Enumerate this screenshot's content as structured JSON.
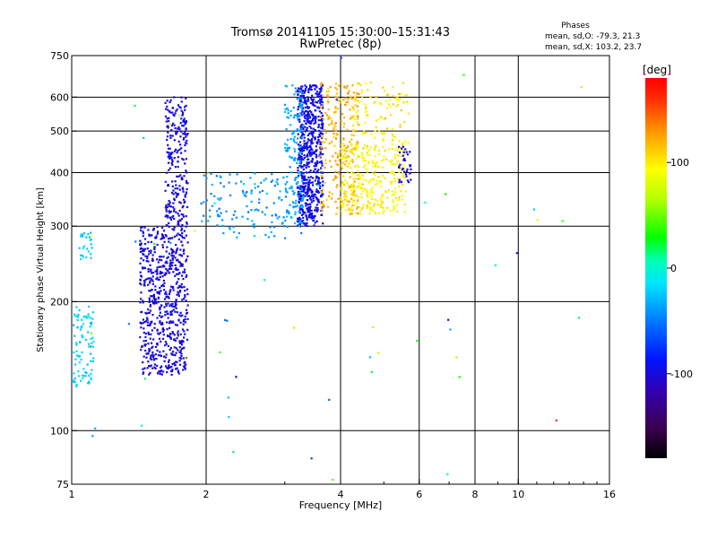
{
  "chart_data": {
    "type": "scatter",
    "title": "Tromsø 20141105 15:30:00–15:31:43",
    "subtitle": "RwPretec (8p)",
    "xlabel": "Frequency [MHz]",
    "ylabel": "Stationary phase Virtual Height [km]",
    "xscale": "log",
    "yscale": "log",
    "xlim": [
      1,
      16
    ],
    "ylim": [
      75,
      750
    ],
    "grid": true,
    "x_ticks": [
      {
        "value": 1,
        "label": "1"
      },
      {
        "value": 2,
        "label": "2"
      },
      {
        "value": 4,
        "label": "4"
      },
      {
        "value": 6,
        "label": "6"
      },
      {
        "value": 8,
        "label": "8"
      },
      {
        "value": 10,
        "label": "10"
      },
      {
        "value": 16,
        "label": "16"
      }
    ],
    "x_gridlines": [
      2,
      4,
      6,
      8,
      10
    ],
    "y_ticks": [
      {
        "value": 75,
        "label": "75"
      },
      {
        "value": 100,
        "label": "100"
      },
      {
        "value": 200,
        "label": "200"
      },
      {
        "value": 300,
        "label": "300"
      },
      {
        "value": 400,
        "label": "400"
      },
      {
        "value": 500,
        "label": "500"
      },
      {
        "value": 600,
        "label": "600"
      },
      {
        "value": 750,
        "label": "750"
      }
    ],
    "y_gridlines": [
      100,
      200,
      300,
      400,
      500,
      600
    ],
    "stats": {
      "title": "Phases",
      "line_o": "mean, sd,O: -79.3, 21.3",
      "line_x": "mean, sd,X: 103.2, 23.7",
      "mean_O": -79.3,
      "sd_O": 21.3,
      "mean_X": 103.2,
      "sd_X": 23.7
    },
    "colorbar": {
      "label": "[deg]",
      "min": -180,
      "max": 180,
      "ticks": [
        {
          "value": 100,
          "label": "100"
        },
        {
          "value": 0,
          "label": "0"
        },
        {
          "value": -100,
          "label": "-100"
        }
      ]
    },
    "clusters": [
      {
        "name": "low-cyan",
        "fmin": 1.0,
        "fmax": 1.12,
        "hmin": 125,
        "hmax": 195,
        "phase": -20,
        "phase_sd": 10,
        "count": 90
      },
      {
        "name": "low-cyan-patch",
        "fmin": 1.04,
        "fmax": 1.11,
        "hmin": 250,
        "hmax": 290,
        "phase": -20,
        "phase_sd": 8,
        "count": 25
      },
      {
        "name": "O-E-region",
        "fmin": 1.42,
        "fmax": 1.82,
        "hmin": 135,
        "hmax": 300,
        "phase": -100,
        "phase_sd": 10,
        "count": 650
      },
      {
        "name": "O-E-upper",
        "fmin": 1.62,
        "fmax": 1.82,
        "hmin": 300,
        "hmax": 600,
        "phase": -100,
        "phase_sd": 10,
        "count": 230
      },
      {
        "name": "O-trace-mid",
        "fmin": 1.95,
        "fmax": 3.2,
        "hmin": 280,
        "hmax": 400,
        "phase": -40,
        "phase_sd": 15,
        "count": 130
      },
      {
        "name": "O-F-region",
        "fmin": 3.2,
        "fmax": 3.65,
        "hmin": 300,
        "hmax": 640,
        "phase": -95,
        "phase_sd": 12,
        "count": 650
      },
      {
        "name": "O-F-left-cyan",
        "fmin": 3.0,
        "fmax": 3.3,
        "hmin": 300,
        "hmax": 640,
        "phase": -35,
        "phase_sd": 10,
        "count": 140
      },
      {
        "name": "X-F-orange",
        "fmin": 3.6,
        "fmax": 4.4,
        "hmin": 320,
        "hmax": 650,
        "phase": 120,
        "phase_sd": 15,
        "count": 240
      },
      {
        "name": "X-F-yellow",
        "fmin": 4.0,
        "fmax": 5.6,
        "hmin": 320,
        "hmax": 470,
        "phase": 95,
        "phase_sd": 12,
        "count": 300
      },
      {
        "name": "X-F-top-yellow",
        "fmin": 4.2,
        "fmax": 5.7,
        "hmin": 450,
        "hmax": 650,
        "phase": 100,
        "phase_sd": 15,
        "count": 110
      },
      {
        "name": "O-F-right-blue",
        "fmin": 5.4,
        "fmax": 5.75,
        "hmin": 380,
        "hmax": 460,
        "phase": -100,
        "phase_sd": 10,
        "count": 35
      },
      {
        "name": "noise",
        "fmin": 1.0,
        "fmax": 16,
        "hmin": 75,
        "hmax": 750,
        "phase": 0,
        "phase_sd": 120,
        "count": 60
      }
    ]
  }
}
